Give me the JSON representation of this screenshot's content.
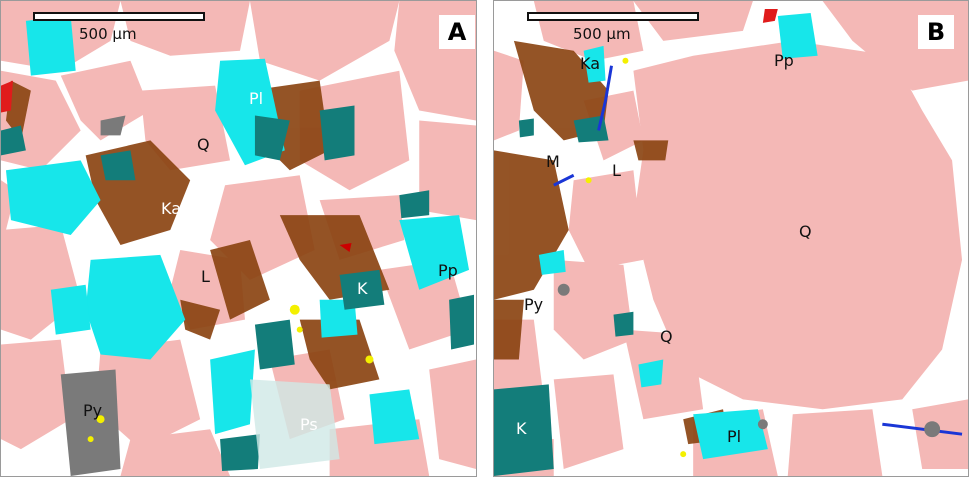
{
  "figure": {
    "panels": [
      {
        "letter": "A",
        "scale_label": "500 μm",
        "labels": [
          "Pl",
          "Q",
          "Ka",
          "L",
          "Pp",
          "K",
          "Py",
          "Ps"
        ]
      },
      {
        "letter": "B",
        "scale_label": "500 μm",
        "labels": [
          "Ka",
          "Pp",
          "M",
          "L",
          "Q",
          "Py",
          "Q",
          "K",
          "Pl"
        ]
      }
    ]
  },
  "colors": {
    "quartz": "#f4b8b6",
    "kaolinite": "#8b4513",
    "plagioclase": "#17e6ea",
    "k_feldspar": "#137d7a",
    "pore": "#ffffff",
    "pyrite": "#f4f000",
    "mica": "#1a36d6"
  }
}
